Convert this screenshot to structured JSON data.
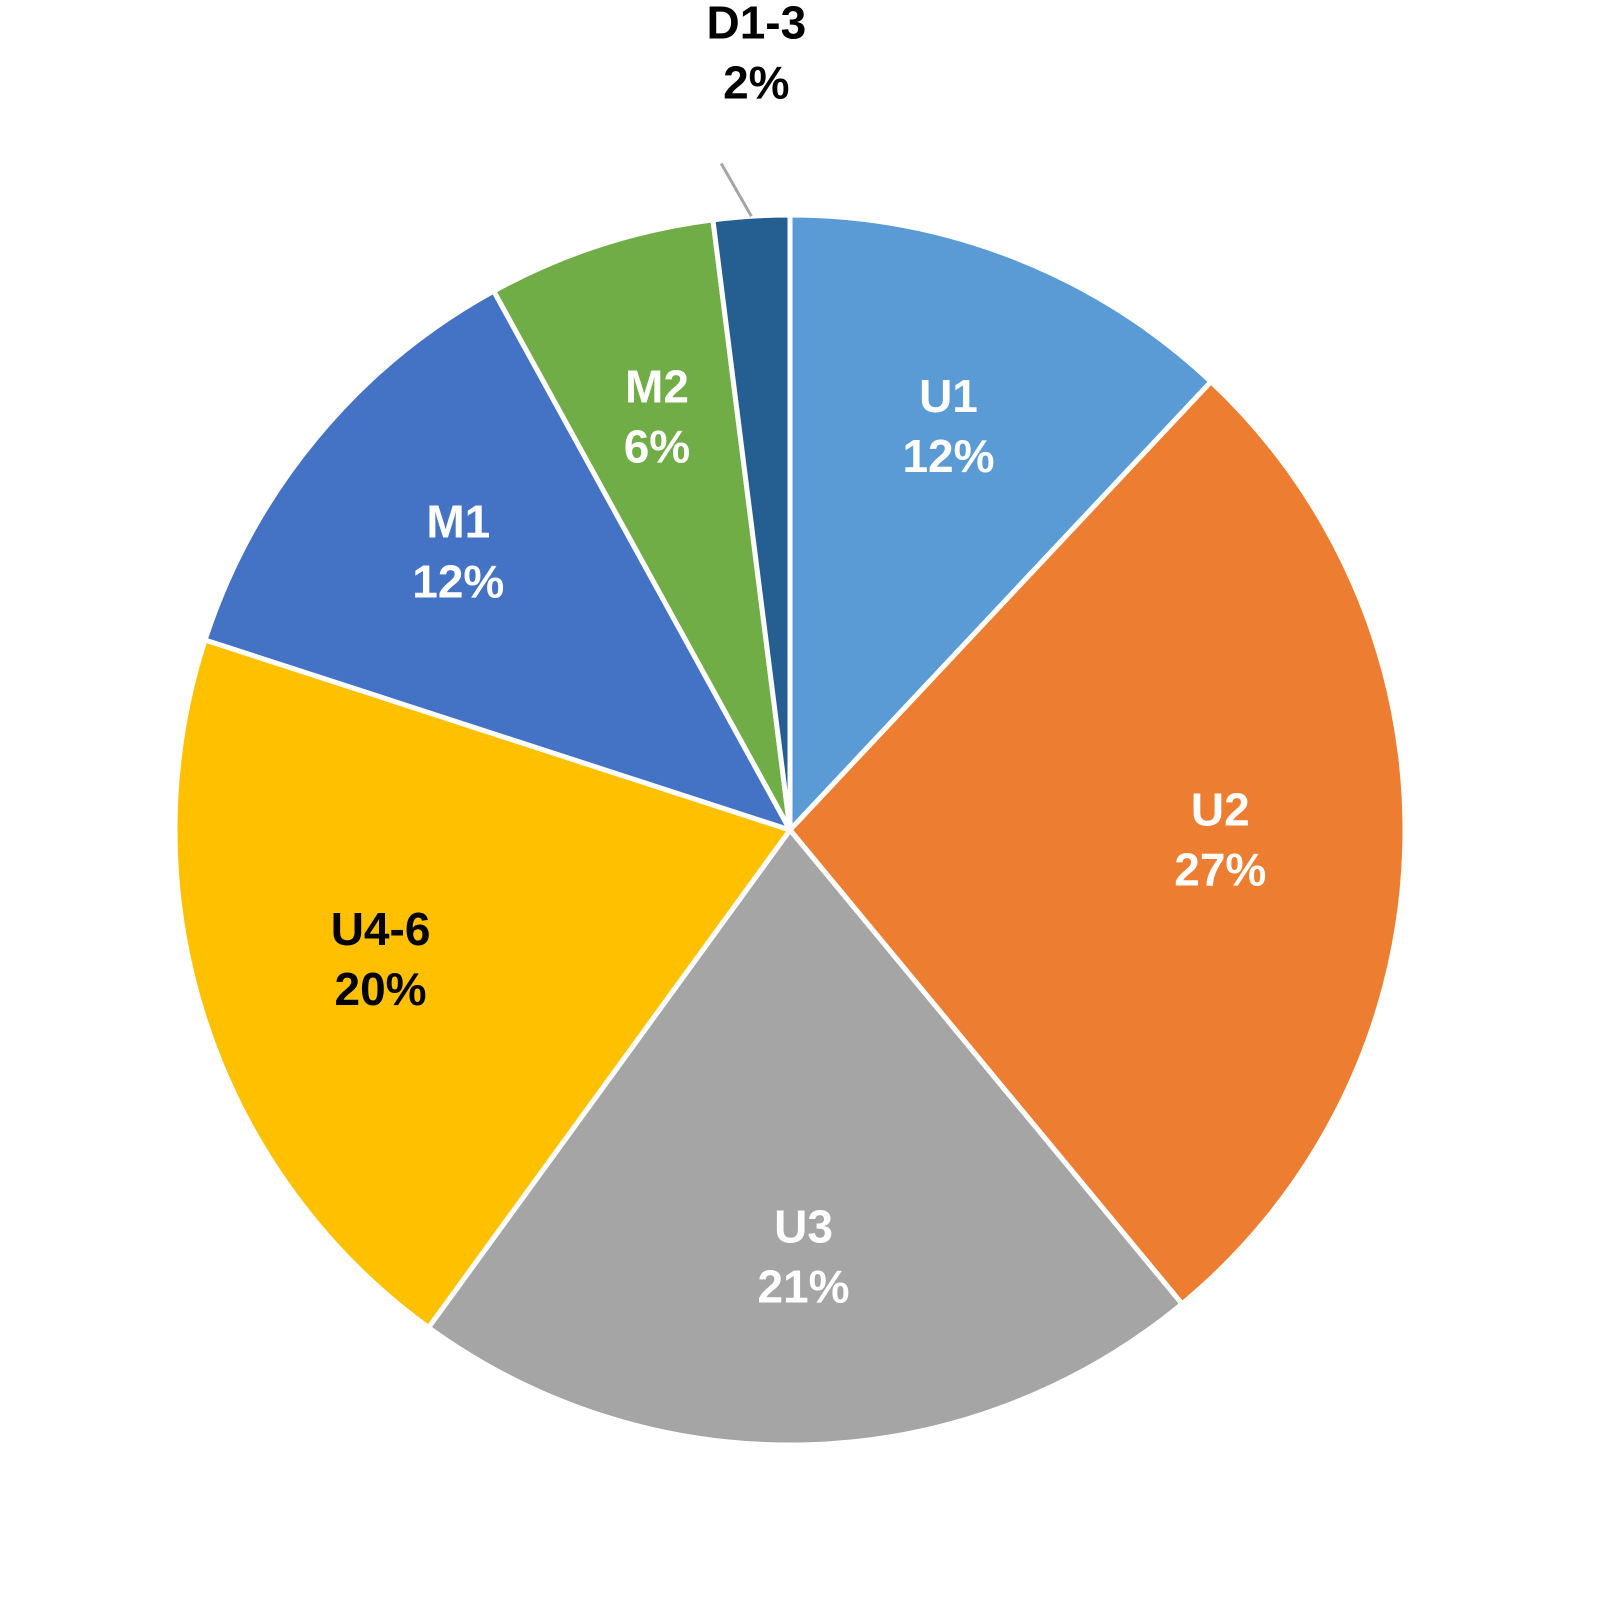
{
  "chart_data": {
    "type": "pie",
    "categories": [
      "U1",
      "U2",
      "U3",
      "U4-6",
      "M1",
      "M2",
      "D1-3"
    ],
    "values": [
      12,
      27,
      21,
      20,
      12,
      6,
      2
    ],
    "value_labels": [
      "12%",
      "27%",
      "21%",
      "20%",
      "12%",
      "6%",
      "2%"
    ],
    "colors": [
      "#5b9bd5",
      "#ed7d31",
      "#a5a5a5",
      "#ffc000",
      "#4472c4",
      "#70ad47",
      "#255e91"
    ]
  }
}
